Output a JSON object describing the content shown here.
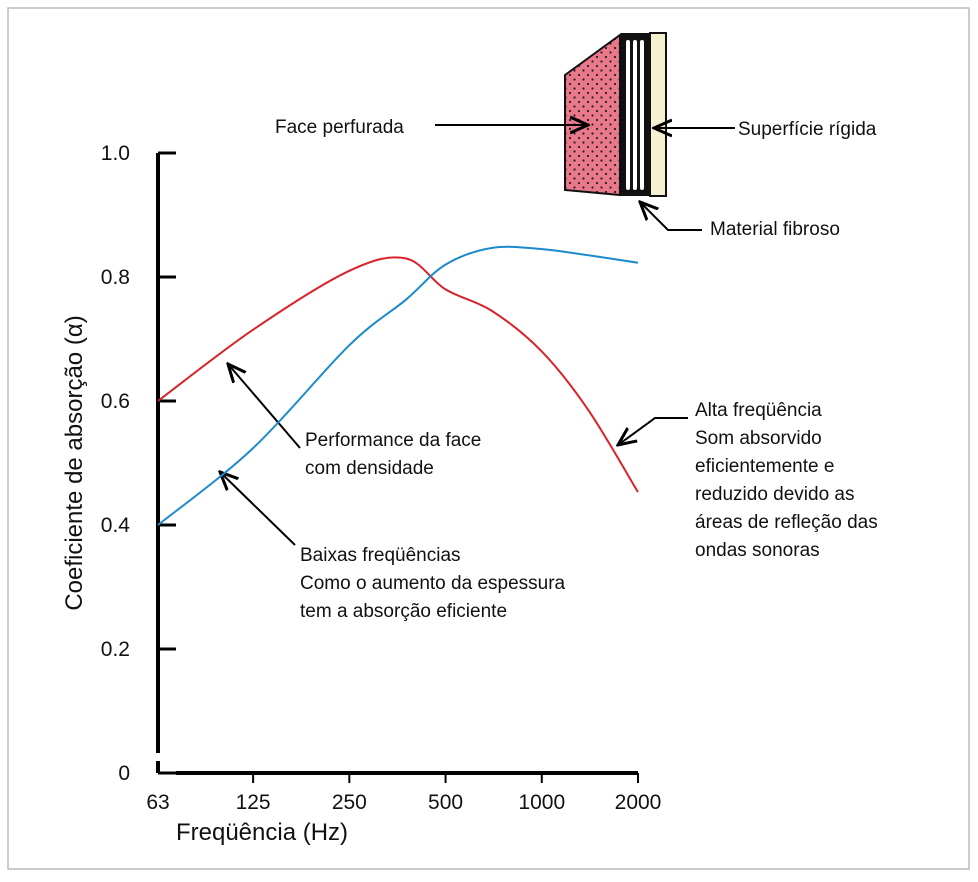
{
  "chart_data": {
    "type": "line",
    "x_label": "Freqüência (Hz)",
    "y_label": "Coeficiente de absorção  (α)",
    "x": [
      63,
      125,
      250,
      375,
      500,
      700,
      1000,
      1400,
      2000
    ],
    "series": [
      {
        "color": "#d8232a",
        "values": [
          0.6,
          0.715,
          0.81,
          0.83,
          0.78,
          0.745,
          0.68,
          0.585,
          0.453
        ]
      },
      {
        "color": "#1b8bcc",
        "values": [
          0.4,
          0.524,
          0.69,
          0.763,
          0.82,
          0.847,
          0.845,
          0.835,
          0.823
        ]
      }
    ],
    "xlim": [
      63,
      2000
    ],
    "xticks": [
      63,
      125,
      250,
      500,
      1000,
      2000
    ],
    "xscale": "log",
    "ylim": [
      0,
      1
    ],
    "yticks": [
      0,
      0.2,
      0.4,
      0.6,
      0.8,
      {
        "value": 1,
        "label": "1.0"
      }
    ],
    "annotations": [
      {
        "lines": [
          "Face perfurada"
        ]
      },
      {
        "lines": [
          "Superfície rígida"
        ]
      },
      {
        "lines": [
          "Material fibroso"
        ]
      },
      {
        "lines": [
          "Performance da face",
          "com densidade"
        ]
      },
      {
        "lines": [
          "Baixas freqüências",
          "Como o aumento da espessura",
          "tem a absorção eficiente"
        ]
      },
      {
        "lines": [
          "Alta freqüência",
          "Som absorvido",
          "eficientemente e",
          "reduzido devido as",
          "áreas de refleção das",
          "ondas sonoras"
        ]
      }
    ]
  }
}
